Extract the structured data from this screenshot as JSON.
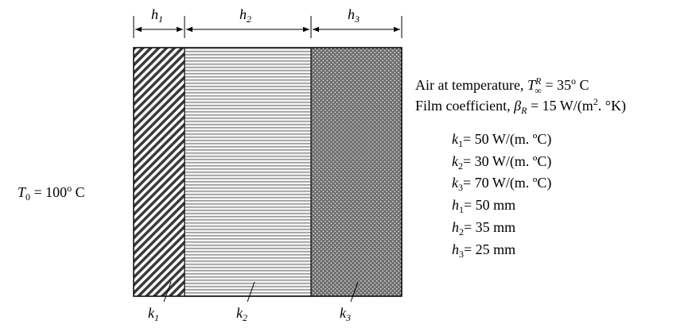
{
  "dimensions": {
    "h1": {
      "symbol": "h",
      "sub": "1"
    },
    "h2": {
      "symbol": "h",
      "sub": "2"
    },
    "h3": {
      "symbol": "h",
      "sub": "3"
    }
  },
  "left_boundary": {
    "symbol": "T",
    "sub": "0",
    "eq": " = ",
    "value": "100",
    "deg": "o",
    "unit": " C"
  },
  "right_boundary": {
    "air_prefix": "Air at temperature, ",
    "air_symbol": "T",
    "air_sup": "R",
    "air_sub": "∞",
    "air_eq": " = 35",
    "air_deg": "o",
    "air_unit": " C",
    "film_prefix": "Film coefficient, ",
    "film_symbol": "β",
    "film_sub": "R",
    "film_eq": " = 15 W/(m",
    "film_sup": "2",
    "film_tail": ". °K)"
  },
  "properties": [
    {
      "symbol": "k",
      "sub": "1",
      "text": "= 50 W/(m. ºC)"
    },
    {
      "symbol": "k",
      "sub": "2",
      "text": "= 30 W/(m. ºC)"
    },
    {
      "symbol": "k",
      "sub": "3",
      "text": "= 70 W/(m. ºC)"
    },
    {
      "symbol": "h",
      "sub": "1",
      "text": "= 50 mm"
    },
    {
      "symbol": "h",
      "sub": "2",
      "text": "= 35 mm"
    },
    {
      "symbol": "h",
      "sub": "3",
      "text": "= 25 mm"
    }
  ],
  "layer_labels": [
    {
      "symbol": "k",
      "sub": "1"
    },
    {
      "symbol": "k",
      "sub": "2"
    },
    {
      "symbol": "k",
      "sub": "3"
    }
  ],
  "colors": {
    "outline": "#000000",
    "layer1_stripe": "#3a3a3a",
    "layer2_stripe": "#8a8a8a",
    "layer3_fill": "#6e6e6e",
    "layer3_dot": "#d8d8d8"
  }
}
